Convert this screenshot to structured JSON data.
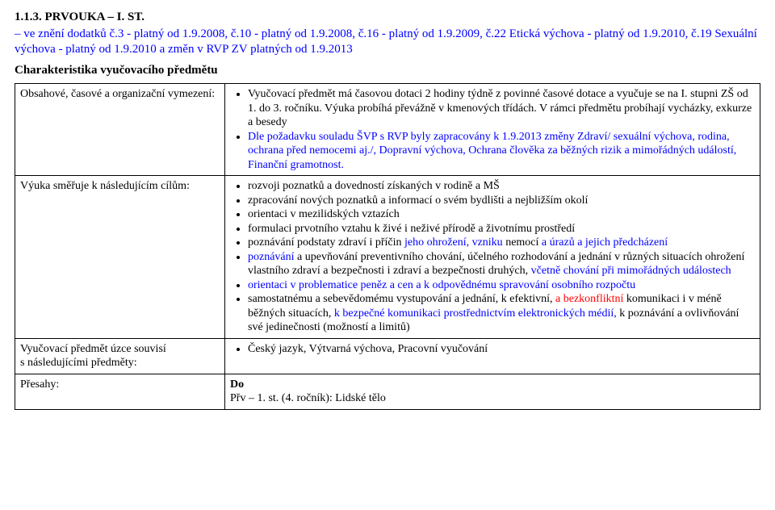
{
  "heading": "1.1.3. PRVOUKA – I. ST.",
  "amendments": {
    "prefix": "– ve znění dodatků č.3 - platný od 1.9.2008, č.10 - platný od 1.9.2008, č.16 - platný od 1.9.2009, č.22 Etická výchova - platný od 1.9.2010, č.19 Sexuální výchova - platný od 1.9.2010",
    "blue_tail": " a změn v RVP ZV platných od 1.9.2013"
  },
  "char_title": "Charakteristika vyučovacího předmětu",
  "table": {
    "rows": [
      {
        "left": "Obsahové, časové a organizační vymezení:",
        "right_type": "bullets",
        "bullets": [
          {
            "segments": [
              {
                "t": "Vyučovací předmět má časovou dotaci 2 hodiny týdně z povinné časové dotace a vyučuje se na I. stupni ZŠ od 1. do 3. ročníku. Výuka probíhá převážně v kmenových třídách. V rámci předmětu probíhají vycházky, exkurze a besedy"
              }
            ]
          },
          {
            "segments": [
              {
                "t": "Dle požadavku souladu ŠVP s RVP byly zapracovány k 1.9.2013 změny Zdraví/ sexuální výchova, rodina, ochrana před nemocemi aj./, Dopravní výchova, Ochrana člověka za běžných rizik a mimořádných událostí, Finanční gramotnost.",
                "c": "blue"
              }
            ]
          }
        ]
      },
      {
        "left": "Výuka směřuje k následujícím cílům:",
        "right_type": "bullets",
        "bullets": [
          {
            "segments": [
              {
                "t": "rozvoji poznatků a dovedností získaných v rodině a MŠ"
              }
            ]
          },
          {
            "segments": [
              {
                "t": "zpracování nových poznatků a informací o svém bydlišti a nejbližším okolí"
              }
            ]
          },
          {
            "segments": [
              {
                "t": "orientaci v mezilidských vztazích"
              }
            ]
          },
          {
            "segments": [
              {
                "t": "formulaci prvotního vztahu k živé i neživé přírodě a životnímu prostředí"
              }
            ]
          },
          {
            "segments": [
              {
                "t": "poznávání podstaty zdraví i příčin "
              },
              {
                "t": "jeho ohrožení, vzniku ",
                "c": "blue"
              },
              {
                "t": "nemocí "
              },
              {
                "t": "a úrazů a jejich předcházení",
                "c": "blue"
              }
            ]
          },
          {
            "segments": [
              {
                "t": "poznávání ",
                "c": "blue"
              },
              {
                "t": "a upevňování preventivního chování, účelného rozhodování a jednání v různých situacích ohrožení vlastního zdraví a bezpečnosti i zdraví a bezpečnosti druhých, "
              },
              {
                "t": "včetně chování při mimořádných událostech",
                "c": "blue"
              }
            ]
          },
          {
            "segments": [
              {
                "t": "orientaci v problematice peněz a cen a k odpovědnému spravování osobního rozpočtu",
                "c": "blue"
              }
            ]
          },
          {
            "segments": [
              {
                "t": "samostatnému a sebevědomému vystupování a jednání, k efektivní,"
              },
              {
                "t": " a bezkonfliktní",
                "c": "red"
              },
              {
                "t": " komunikaci i v méně běžných situacích, "
              },
              {
                "t": "k bezpečné komunikaci prostřednictvím elektronických médií,",
                "c": "blue"
              },
              {
                "t": " k poznávání a ovlivňování své jedinečnosti (možností a limitů)"
              }
            ]
          }
        ]
      },
      {
        "left": "Vyučovací předmět úzce souvisí\ns následujícími předměty:",
        "right_type": "bullets",
        "bullets": [
          {
            "segments": [
              {
                "t": "Český jazyk, Výtvarná výchova, Pracovní vyučování"
              }
            ]
          }
        ]
      },
      {
        "left": "Přesahy:",
        "right_type": "plain",
        "plain": [
          {
            "segments": [
              {
                "t": "Do",
                "bold": true
              }
            ]
          },
          {
            "segments": [
              {
                "t": "Přv – 1. st. (4. ročník): Lidské tělo"
              }
            ]
          }
        ]
      }
    ]
  }
}
